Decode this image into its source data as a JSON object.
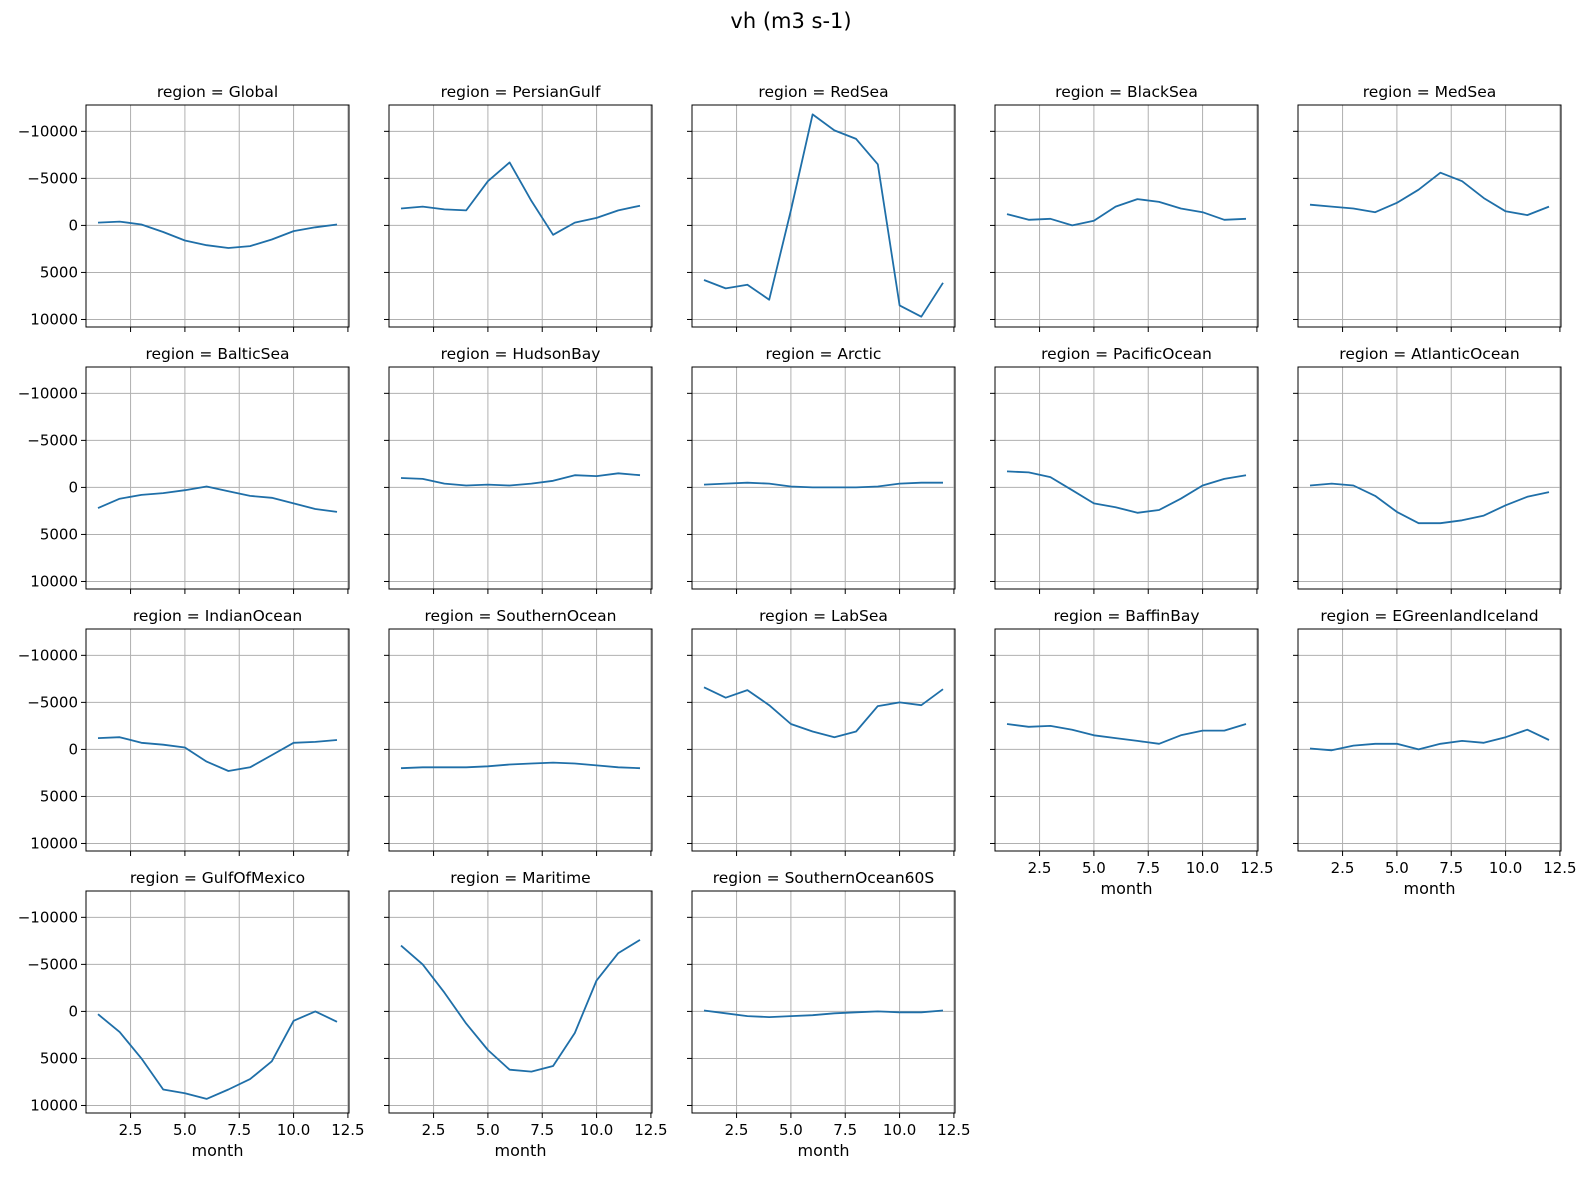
{
  "figure": {
    "title": "vh (m3 s-1)",
    "xlabel": "month",
    "colors": {
      "line": "#1f6fa8",
      "grid": "#b0b0b0",
      "frame": "#000000"
    }
  },
  "chart_data": [
    {
      "type": "line",
      "title": "region = Global",
      "x": [
        1,
        2,
        3,
        4,
        5,
        6,
        7,
        8,
        9,
        10,
        11,
        12
      ],
      "y": [
        -300,
        -400,
        -100,
        700,
        1600,
        2100,
        2400,
        2200,
        1500,
        600,
        200,
        -100
      ],
      "xlim": [
        0.45,
        12.55
      ],
      "ylim": [
        -12800,
        10800
      ],
      "yticks": [
        -10000,
        -5000,
        0,
        5000,
        10000
      ],
      "xticks": [
        2.5,
        5.0,
        7.5,
        10.0,
        12.5
      ],
      "inverted_y": true,
      "grid": true
    },
    {
      "type": "line",
      "title": "region = PersianGulf",
      "x": [
        1,
        2,
        3,
        4,
        5,
        6,
        7,
        8,
        9,
        10,
        11,
        12
      ],
      "y": [
        -1800,
        -2000,
        -1700,
        -1600,
        -4700,
        -6700,
        -2600,
        1000,
        -300,
        -800,
        -1600,
        -2100
      ],
      "xlim": [
        0.45,
        12.55
      ],
      "ylim": [
        -12800,
        10800
      ],
      "yticks": [
        -10000,
        -5000,
        0,
        5000,
        10000
      ],
      "xticks": [
        2.5,
        5.0,
        7.5,
        10.0,
        12.5
      ],
      "inverted_y": true,
      "grid": true
    },
    {
      "type": "line",
      "title": "region = RedSea",
      "x": [
        1,
        2,
        3,
        4,
        5,
        6,
        7,
        8,
        9,
        10,
        11,
        12
      ],
      "y": [
        5800,
        6700,
        6300,
        7900,
        -1600,
        -11800,
        -10100,
        -9200,
        -6500,
        8500,
        9700,
        6100
      ],
      "xlim": [
        0.45,
        12.55
      ],
      "ylim": [
        -12800,
        10800
      ],
      "yticks": [
        -10000,
        -5000,
        0,
        5000,
        10000
      ],
      "xticks": [
        2.5,
        5.0,
        7.5,
        10.0,
        12.5
      ],
      "inverted_y": true,
      "grid": true
    },
    {
      "type": "line",
      "title": "region = BlackSea",
      "x": [
        1,
        2,
        3,
        4,
        5,
        6,
        7,
        8,
        9,
        10,
        11,
        12
      ],
      "y": [
        -1200,
        -600,
        -700,
        0,
        -500,
        -2000,
        -2800,
        -2500,
        -1800,
        -1400,
        -600,
        -700
      ],
      "xlim": [
        0.45,
        12.55
      ],
      "ylim": [
        -12800,
        10800
      ],
      "yticks": [
        -10000,
        -5000,
        0,
        5000,
        10000
      ],
      "xticks": [
        2.5,
        5.0,
        7.5,
        10.0,
        12.5
      ],
      "inverted_y": true,
      "grid": true
    },
    {
      "type": "line",
      "title": "region = MedSea",
      "x": [
        1,
        2,
        3,
        4,
        5,
        6,
        7,
        8,
        9,
        10,
        11,
        12
      ],
      "y": [
        -2200,
        -2000,
        -1800,
        -1400,
        -2400,
        -3800,
        -5600,
        -4700,
        -2900,
        -1500,
        -1100,
        -2000
      ],
      "xlim": [
        0.45,
        12.55
      ],
      "ylim": [
        -12800,
        10800
      ],
      "yticks": [
        -10000,
        -5000,
        0,
        5000,
        10000
      ],
      "xticks": [
        2.5,
        5.0,
        7.5,
        10.0,
        12.5
      ],
      "inverted_y": true,
      "grid": true
    },
    {
      "type": "line",
      "title": "region = BalticSea",
      "x": [
        1,
        2,
        3,
        4,
        5,
        6,
        7,
        8,
        9,
        10,
        11,
        12
      ],
      "y": [
        2200,
        1200,
        800,
        600,
        300,
        -100,
        400,
        900,
        1100,
        1700,
        2300,
        2600
      ],
      "xlim": [
        0.45,
        12.55
      ],
      "ylim": [
        -12800,
        10800
      ],
      "yticks": [
        -10000,
        -5000,
        0,
        5000,
        10000
      ],
      "xticks": [
        2.5,
        5.0,
        7.5,
        10.0,
        12.5
      ],
      "inverted_y": true,
      "grid": true
    },
    {
      "type": "line",
      "title": "region = HudsonBay",
      "x": [
        1,
        2,
        3,
        4,
        5,
        6,
        7,
        8,
        9,
        10,
        11,
        12
      ],
      "y": [
        -1000,
        -900,
        -400,
        -200,
        -300,
        -200,
        -400,
        -700,
        -1300,
        -1200,
        -1500,
        -1300
      ],
      "xlim": [
        0.45,
        12.55
      ],
      "ylim": [
        -12800,
        10800
      ],
      "yticks": [
        -10000,
        -5000,
        0,
        5000,
        10000
      ],
      "xticks": [
        2.5,
        5.0,
        7.5,
        10.0,
        12.5
      ],
      "inverted_y": true,
      "grid": true
    },
    {
      "type": "line",
      "title": "region = Arctic",
      "x": [
        1,
        2,
        3,
        4,
        5,
        6,
        7,
        8,
        9,
        10,
        11,
        12
      ],
      "y": [
        -300,
        -400,
        -500,
        -400,
        -100,
        0,
        0,
        0,
        -100,
        -400,
        -500,
        -500
      ],
      "xlim": [
        0.45,
        12.55
      ],
      "ylim": [
        -12800,
        10800
      ],
      "yticks": [
        -10000,
        -5000,
        0,
        5000,
        10000
      ],
      "xticks": [
        2.5,
        5.0,
        7.5,
        10.0,
        12.5
      ],
      "inverted_y": true,
      "grid": true
    },
    {
      "type": "line",
      "title": "region = PacificOcean",
      "x": [
        1,
        2,
        3,
        4,
        5,
        6,
        7,
        8,
        9,
        10,
        11,
        12
      ],
      "y": [
        -1700,
        -1600,
        -1100,
        300,
        1700,
        2100,
        2700,
        2400,
        1200,
        -200,
        -900,
        -1300
      ],
      "xlim": [
        0.45,
        12.55
      ],
      "ylim": [
        -12800,
        10800
      ],
      "yticks": [
        -10000,
        -5000,
        0,
        5000,
        10000
      ],
      "xticks": [
        2.5,
        5.0,
        7.5,
        10.0,
        12.5
      ],
      "inverted_y": true,
      "grid": true
    },
    {
      "type": "line",
      "title": "region = AtlanticOcean",
      "x": [
        1,
        2,
        3,
        4,
        5,
        6,
        7,
        8,
        9,
        10,
        11,
        12
      ],
      "y": [
        -200,
        -400,
        -200,
        900,
        2600,
        3800,
        3800,
        3500,
        3000,
        1900,
        1000,
        500
      ],
      "xlim": [
        0.45,
        12.55
      ],
      "ylim": [
        -12800,
        10800
      ],
      "yticks": [
        -10000,
        -5000,
        0,
        5000,
        10000
      ],
      "xticks": [
        2.5,
        5.0,
        7.5,
        10.0,
        12.5
      ],
      "inverted_y": true,
      "grid": true
    },
    {
      "type": "line",
      "title": "region = IndianOcean",
      "x": [
        1,
        2,
        3,
        4,
        5,
        6,
        7,
        8,
        9,
        10,
        11,
        12
      ],
      "y": [
        -1200,
        -1300,
        -700,
        -500,
        -200,
        1300,
        2300,
        1900,
        600,
        -700,
        -800,
        -1000
      ],
      "xlim": [
        0.45,
        12.55
      ],
      "ylim": [
        -12800,
        10800
      ],
      "yticks": [
        -10000,
        -5000,
        0,
        5000,
        10000
      ],
      "xticks": [
        2.5,
        5.0,
        7.5,
        10.0,
        12.5
      ],
      "inverted_y": true,
      "grid": true
    },
    {
      "type": "line",
      "title": "region = SouthernOcean",
      "x": [
        1,
        2,
        3,
        4,
        5,
        6,
        7,
        8,
        9,
        10,
        11,
        12
      ],
      "y": [
        2000,
        1900,
        1900,
        1900,
        1800,
        1600,
        1500,
        1400,
        1500,
        1700,
        1900,
        2000
      ],
      "xlim": [
        0.45,
        12.55
      ],
      "ylim": [
        -12800,
        10800
      ],
      "yticks": [
        -10000,
        -5000,
        0,
        5000,
        10000
      ],
      "xticks": [
        2.5,
        5.0,
        7.5,
        10.0,
        12.5
      ],
      "inverted_y": true,
      "grid": true
    },
    {
      "type": "line",
      "title": "region = LabSea",
      "x": [
        1,
        2,
        3,
        4,
        5,
        6,
        7,
        8,
        9,
        10,
        11,
        12
      ],
      "y": [
        -6600,
        -5500,
        -6300,
        -4700,
        -2700,
        -1900,
        -1300,
        -1900,
        -4600,
        -5000,
        -4700,
        -6400
      ],
      "xlim": [
        0.45,
        12.55
      ],
      "ylim": [
        -12800,
        10800
      ],
      "yticks": [
        -10000,
        -5000,
        0,
        5000,
        10000
      ],
      "xticks": [
        2.5,
        5.0,
        7.5,
        10.0,
        12.5
      ],
      "inverted_y": true,
      "grid": true
    },
    {
      "type": "line",
      "title": "region = BaffinBay",
      "x": [
        1,
        2,
        3,
        4,
        5,
        6,
        7,
        8,
        9,
        10,
        11,
        12
      ],
      "y": [
        -2700,
        -2400,
        -2500,
        -2100,
        -1500,
        -1200,
        -900,
        -600,
        -1500,
        -2000,
        -2000,
        -2700
      ],
      "xlim": [
        0.45,
        12.55
      ],
      "ylim": [
        -12800,
        10800
      ],
      "yticks": [
        -10000,
        -5000,
        0,
        5000,
        10000
      ],
      "xticks": [
        2.5,
        5.0,
        7.5,
        10.0,
        12.5
      ],
      "inverted_y": true,
      "grid": true
    },
    {
      "type": "line",
      "title": "region = EGreenlandIceland",
      "x": [
        1,
        2,
        3,
        4,
        5,
        6,
        7,
        8,
        9,
        10,
        11,
        12
      ],
      "y": [
        -100,
        100,
        -400,
        -600,
        -600,
        0,
        -600,
        -900,
        -700,
        -1300,
        -2100,
        -1000
      ],
      "xlim": [
        0.45,
        12.55
      ],
      "ylim": [
        -12800,
        10800
      ],
      "yticks": [
        -10000,
        -5000,
        0,
        5000,
        10000
      ],
      "xticks": [
        2.5,
        5.0,
        7.5,
        10.0,
        12.5
      ],
      "inverted_y": true,
      "grid": true
    },
    {
      "type": "line",
      "title": "region = GulfOfMexico",
      "x": [
        1,
        2,
        3,
        4,
        5,
        6,
        7,
        8,
        9,
        10,
        11,
        12
      ],
      "y": [
        300,
        2200,
        5000,
        8300,
        8700,
        9300,
        8300,
        7200,
        5300,
        1000,
        0,
        1100
      ],
      "xlim": [
        0.45,
        12.55
      ],
      "ylim": [
        -12800,
        10800
      ],
      "yticks": [
        -10000,
        -5000,
        0,
        5000,
        10000
      ],
      "xticks": [
        2.5,
        5.0,
        7.5,
        10.0,
        12.5
      ],
      "inverted_y": true,
      "grid": true
    },
    {
      "type": "line",
      "title": "region = Maritime",
      "x": [
        1,
        2,
        3,
        4,
        5,
        6,
        7,
        8,
        9,
        10,
        11,
        12
      ],
      "y": [
        -7000,
        -5000,
        -2000,
        1300,
        4100,
        6200,
        6400,
        5800,
        2300,
        -3300,
        -6200,
        -7600
      ],
      "xlim": [
        0.45,
        12.55
      ],
      "ylim": [
        -12800,
        10800
      ],
      "yticks": [
        -10000,
        -5000,
        0,
        5000,
        10000
      ],
      "xticks": [
        2.5,
        5.0,
        7.5,
        10.0,
        12.5
      ],
      "inverted_y": true,
      "grid": true
    },
    {
      "type": "line",
      "title": "region = SouthernOcean60S",
      "x": [
        1,
        2,
        3,
        4,
        5,
        6,
        7,
        8,
        9,
        10,
        11,
        12
      ],
      "y": [
        -100,
        200,
        500,
        600,
        500,
        400,
        200,
        100,
        0,
        100,
        100,
        -100
      ],
      "xlim": [
        0.45,
        12.55
      ],
      "ylim": [
        -12800,
        10800
      ],
      "yticks": [
        -10000,
        -5000,
        0,
        5000,
        10000
      ],
      "xticks": [
        2.5,
        5.0,
        7.5,
        10.0,
        12.5
      ],
      "inverted_y": true,
      "grid": true
    }
  ]
}
